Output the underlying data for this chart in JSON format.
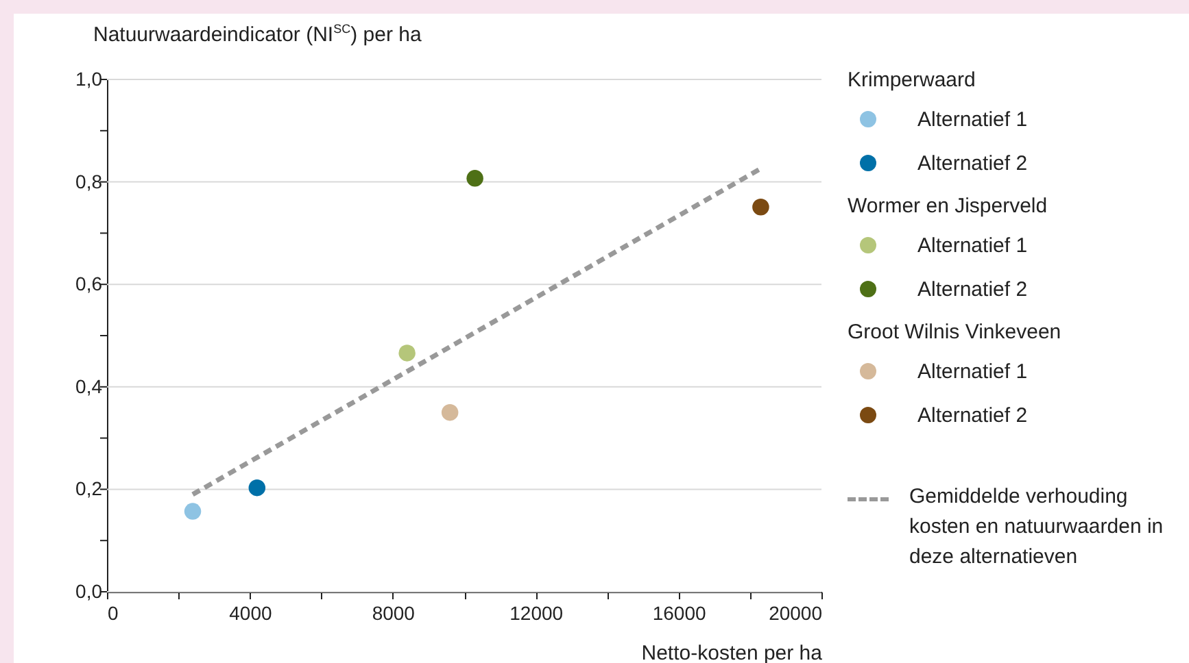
{
  "chart_data": {
    "type": "scatter",
    "ylabel": "Natuurwaardeindicator (NI$^{SC}$) per ha",
    "xlabel": "Netto-kosten per ha",
    "xlim": [
      0,
      20000
    ],
    "xticks": [
      0,
      {
        "value": 2000,
        "label": null
      },
      4000,
      {
        "value": 6000,
        "label": null
      },
      8000,
      {
        "value": 10000,
        "label": null
      },
      12000,
      {
        "value": 14000,
        "label": null
      },
      16000,
      {
        "value": 18000,
        "label": null
      },
      20000
    ],
    "ylim": [
      0,
      1
    ],
    "yticks": [
      {
        "value": 0,
        "label": "0,0"
      },
      {
        "value": 0.1,
        "label": null
      },
      {
        "value": 0.2,
        "label": "0,2"
      },
      {
        "value": 0.3,
        "label": null
      },
      {
        "value": 0.4,
        "label": "0,4"
      },
      {
        "value": 0.5,
        "label": null
      },
      {
        "value": 0.6,
        "label": "0,6"
      },
      {
        "value": 0.7,
        "label": null
      },
      {
        "value": 0.8,
        "label": "0,8"
      },
      {
        "value": 0.9,
        "label": null
      },
      {
        "value": 1,
        "label": "1,0"
      }
    ],
    "grid": "y",
    "legend": "right",
    "marker": "circle",
    "annotations": [
      "Krimperwaard",
      "Wormer en Jisperveld",
      "Groot Wilnis Vinkeveen"
    ],
    "series": [
      {
        "name": "Alternatief 1",
        "color": "#8ec3e3",
        "x": [
          2400
        ],
        "values": [
          0.157
        ]
      },
      {
        "name": "Alternatief 2",
        "color": "#0070a8",
        "x": [
          4200
        ],
        "values": [
          0.203
        ]
      },
      {
        "name": "Alternatief 1",
        "color": "#b5c67a",
        "x": [
          8400
        ],
        "values": [
          0.466
        ]
      },
      {
        "name": "Alternatief 2",
        "color": "#4e7016",
        "x": [
          10300
        ],
        "values": [
          0.807
        ]
      },
      {
        "name": "Alternatief 1",
        "color": "#d5b99a",
        "x": [
          9600
        ],
        "values": [
          0.35
        ]
      },
      {
        "name": "Alternatief 2",
        "color": "#7b4a12",
        "x": [
          18300
        ],
        "values": [
          0.751
        ]
      },
      {
        "name": "Gemiddelde verhouding kosten en natuurwaarden in deze alternatieven",
        "type": "line",
        "marker": "none",
        "line_style": "dashed",
        "color": "#999999",
        "x": [
          2400,
          18300
        ],
        "values": [
          0.19,
          0.826
        ]
      }
    ]
  }
}
